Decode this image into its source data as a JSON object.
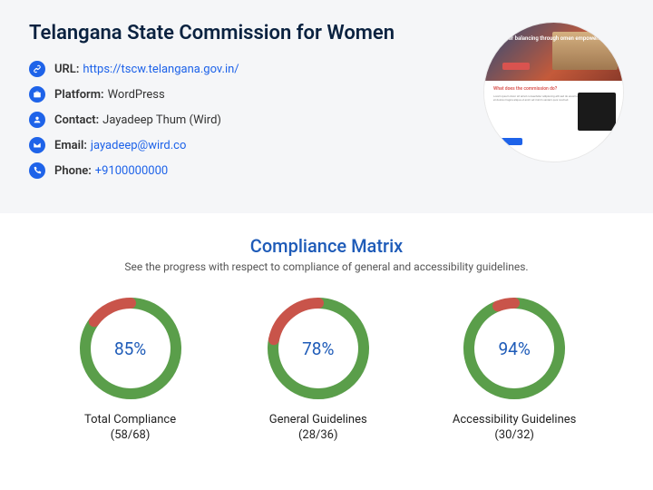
{
  "header": {
    "title": "Telangana State Commission for Women",
    "url_label": "URL:",
    "url_value": "https://tscw.telangana.gov.in/",
    "platform_label": "Platform:",
    "platform_value": "WordPress",
    "contact_label": "Contact:",
    "contact_value": "Jayadeep Thum (Wird)",
    "email_label": "Email:",
    "email_value": "jayadeep@wird.co",
    "phone_label": "Phone:",
    "phone_value": "+9100000000",
    "thumb_text": "nder balancing through\nomen empowerment",
    "thumb_heading": "What does the commission do?"
  },
  "compliance": {
    "title": "Compliance Matrix",
    "subtitle": "See the progress with respect to compliance of general and accessibility guidelines.",
    "colors": {
      "title": "#1e5bb8",
      "pct": "#1e5bb8",
      "track": "#eeeeee",
      "green": "#5a9e4a",
      "red": "#c9544a"
    },
    "charts": [
      {
        "pct": "85%",
        "label": "Total Compliance",
        "frac": "(58/68)",
        "value": 85
      },
      {
        "pct": "78%",
        "label": "General Guidelines",
        "frac": "(28/36)",
        "value": 78
      },
      {
        "pct": "94%",
        "label": "Accessibility Guidelines",
        "frac": "(30/32)",
        "value": 94
      }
    ]
  }
}
